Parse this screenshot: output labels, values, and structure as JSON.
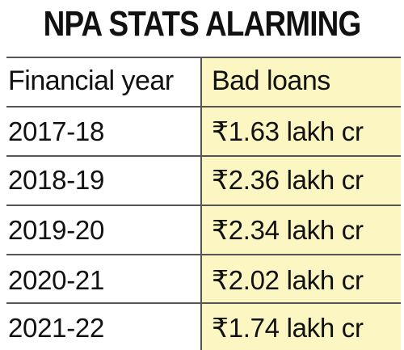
{
  "chart_data": {
    "type": "table",
    "title": "NPA STATS ALARMING",
    "columns": [
      "Financial year",
      "Bad loans"
    ],
    "rows": [
      {
        "year": "2017-18",
        "bad_loans": "₹1.63 lakh cr"
      },
      {
        "year": "2018-19",
        "bad_loans": "₹2.36 lakh cr"
      },
      {
        "year": "2019-20",
        "bad_loans": "₹2.34 lakh cr"
      },
      {
        "year": "2020-21",
        "bad_loans": "₹2.02 lakh cr"
      },
      {
        "year": "2021-22",
        "bad_loans": "₹1.74 lakh cr"
      }
    ],
    "highlight_color": "#fbf6c2"
  }
}
